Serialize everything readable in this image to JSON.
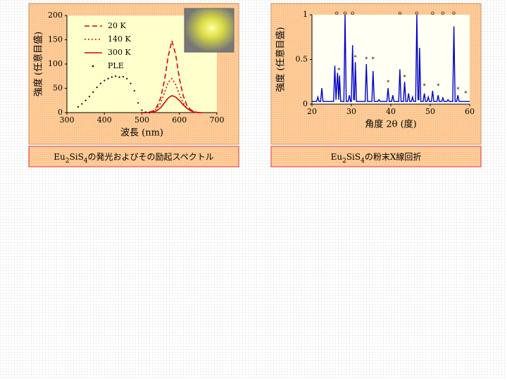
{
  "chart_data": [
    {
      "type": "line",
      "xlabel": "波長 (nm)",
      "ylabel": "強度 (任意目盛)",
      "caption": [
        "Eu",
        "2",
        "SiS",
        "4",
        "の発光およびその励起スペクトル"
      ],
      "xlim": [
        300,
        700
      ],
      "xticks": [
        300,
        400,
        500,
        600,
        700
      ],
      "ylim": [
        0,
        200
      ],
      "yticks": [
        0,
        50,
        100,
        150,
        200
      ],
      "legend": "upper left",
      "series": [
        {
          "name": "20 K",
          "color": "#dd0000",
          "style": "dashed",
          "x": [
            500,
            510,
            520,
            530,
            540,
            550,
            560,
            570,
            580,
            590,
            600,
            610,
            620,
            630,
            640,
            650,
            660
          ],
          "values": [
            0,
            0,
            1,
            3,
            12,
            30,
            65,
            115,
            148,
            120,
            70,
            35,
            15,
            6,
            2,
            0,
            0
          ]
        },
        {
          "name": "140 K",
          "color": "#dd0000",
          "style": "dotted",
          "x": [
            500,
            510,
            520,
            530,
            540,
            550,
            560,
            570,
            580,
            590,
            600,
            610,
            620,
            630,
            640,
            650,
            660
          ],
          "values": [
            0,
            0,
            1,
            2,
            8,
            20,
            40,
            62,
            70,
            58,
            38,
            20,
            9,
            4,
            1,
            0,
            0
          ]
        },
        {
          "name": "300 K",
          "color": "#dd0000",
          "style": "solid",
          "x": [
            500,
            510,
            520,
            530,
            540,
            550,
            560,
            570,
            580,
            590,
            600,
            610,
            620,
            630,
            640,
            650,
            660
          ],
          "values": [
            0,
            0,
            0,
            1,
            4,
            10,
            20,
            30,
            35,
            32,
            25,
            16,
            9,
            4,
            1,
            0,
            0
          ]
        },
        {
          "name": "PLE",
          "color": "#000000",
          "style": "dots",
          "x": [
            330,
            340,
            350,
            360,
            370,
            380,
            390,
            400,
            410,
            420,
            430,
            440,
            450,
            460,
            470,
            480,
            490,
            500,
            510,
            520
          ],
          "values": [
            12,
            18,
            25,
            33,
            42,
            52,
            60,
            66,
            70,
            73,
            75,
            73,
            74,
            70,
            60,
            45,
            20,
            5,
            1,
            0
          ]
        }
      ]
    },
    {
      "type": "line",
      "xlabel": "角度 2θ (度)",
      "ylabel": "強度 (任意目盛)",
      "caption": [
        "Eu",
        "2",
        "SiS",
        "4",
        "の粉末X線回折"
      ],
      "xlim": [
        20,
        60
      ],
      "xticks": [
        20,
        30,
        40,
        50,
        60
      ],
      "ylim": [
        0,
        1
      ],
      "yticks": [
        0,
        0.5,
        1
      ],
      "series": [
        {
          "color": "#0000cc",
          "style": "solid",
          "x": [
            20,
            21.2,
            21.5,
            21.8,
            22.2,
            22.5,
            22.8,
            25.5,
            25.8,
            26.1,
            26.5,
            26.8,
            27,
            27.3,
            28.1,
            28.4,
            28.7,
            29.2,
            29.5,
            29.8,
            30,
            30.3,
            30.6,
            30.8,
            31,
            31.3,
            33.5,
            33.8,
            34.1,
            35.2,
            35.5,
            35.8,
            36.7,
            37,
            37.3,
            39,
            39.3,
            39.6,
            40.2,
            40.5,
            40.8,
            42,
            42.3,
            42.6,
            43.2,
            43.5,
            43.8,
            44.2,
            44.5,
            44.8,
            45.2,
            45.5,
            45.8,
            46.3,
            46.6,
            46.9,
            47.1,
            47.3,
            47.6,
            48.2,
            48.5,
            48.8,
            49.2,
            49.5,
            49.8,
            50.3,
            50.6,
            50.9,
            51.7,
            52,
            52.3,
            52.9,
            53.2,
            53.5,
            54.2,
            54.5,
            54.8,
            55.7,
            56,
            56.3,
            56.7,
            57,
            57.3,
            58,
            60
          ],
          "values": [
            0.03,
            0.03,
            0.08,
            0.03,
            0.03,
            0.18,
            0.03,
            0.03,
            0.43,
            0.05,
            0.35,
            0.05,
            0.32,
            0.03,
            0.03,
            1,
            0.03,
            0.03,
            0.1,
            0.03,
            0.03,
            0.66,
            0.05,
            0.05,
            0.47,
            0.03,
            0.03,
            0.45,
            0.03,
            0.03,
            0.37,
            0.03,
            0.03,
            0.05,
            0.03,
            0.03,
            0.18,
            0.03,
            0.03,
            0.1,
            0.03,
            0.03,
            0.39,
            0.03,
            0.03,
            0.25,
            0.03,
            0.03,
            0.12,
            0.03,
            0.03,
            0.08,
            0.03,
            0.03,
            1,
            0.05,
            0.05,
            0.63,
            0.03,
            0.03,
            0.12,
            0.03,
            0.03,
            0.08,
            0.03,
            0.03,
            0.15,
            0.03,
            0.03,
            0.1,
            0.03,
            0.03,
            0.07,
            0.03,
            0.03,
            0.05,
            0.03,
            0.03,
            0.87,
            0.03,
            0.03,
            0.1,
            0.03,
            0.03,
            0.03
          ]
        }
      ],
      "annotations": [
        {
          "x": 26.3,
          "y": 1,
          "label": "o"
        },
        {
          "x": 28.4,
          "y": 1,
          "label": "o"
        },
        {
          "x": 30.3,
          "y": 1,
          "label": "o"
        },
        {
          "x": 42.3,
          "y": 1,
          "label": "o"
        },
        {
          "x": 46.6,
          "y": 1,
          "label": "o"
        },
        {
          "x": 50.6,
          "y": 1,
          "label": "o"
        },
        {
          "x": 53.2,
          "y": 1,
          "label": "o"
        },
        {
          "x": 56,
          "y": 1,
          "label": "o"
        },
        {
          "x": 26.8,
          "y": 0.36,
          "label": "*"
        },
        {
          "x": 31,
          "y": 0.5,
          "label": "*"
        },
        {
          "x": 33.8,
          "y": 0.48,
          "label": "*"
        },
        {
          "x": 35.5,
          "y": 0.48,
          "label": "*"
        },
        {
          "x": 39.3,
          "y": 0.22,
          "label": "*"
        },
        {
          "x": 43.5,
          "y": 0.28,
          "label": "*"
        },
        {
          "x": 48.5,
          "y": 0.18,
          "label": "*"
        },
        {
          "x": 52,
          "y": 0.18,
          "label": "*"
        },
        {
          "x": 57,
          "y": 0.14,
          "label": "*"
        },
        {
          "x": 59,
          "y": 0.1,
          "label": "*"
        }
      ]
    }
  ]
}
